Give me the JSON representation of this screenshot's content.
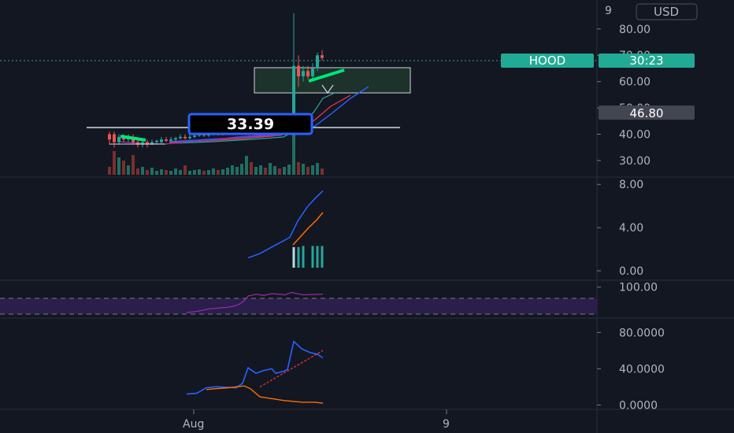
{
  "currency": "USD",
  "ticker": {
    "symbol": "HOOD",
    "countdown": "30:23",
    "color": "#22ab94"
  },
  "price_tag": {
    "value": "46.80",
    "color": "#434651"
  },
  "callout_label": "33.39",
  "x_axis": {
    "labels": [
      "Aug",
      "9"
    ]
  },
  "chart_data": [
    {
      "type": "candlestick",
      "pane": "price",
      "y_ticks": [
        30,
        40,
        50,
        60,
        70,
        80
      ],
      "y_tick_labels": [
        "30.00",
        "40.00",
        "50.00",
        "60.00",
        "70.00",
        "80.00"
      ],
      "extra_top_label": "9",
      "ylim": [
        24,
        91
      ],
      "current_price": 70.2,
      "last_price_line": 46.8,
      "horizontal_level": 40.0,
      "grid": false,
      "colors": {
        "up": "#26a69a",
        "down": "#ef5350"
      }
    },
    {
      "type": "line",
      "pane": "macd",
      "y_ticks": [
        0,
        4,
        8
      ],
      "y_tick_labels": [
        "0.00",
        "4.00",
        "8.00"
      ],
      "ylim": [
        -0.8,
        8.6
      ],
      "series": [
        {
          "color": "#2962ff",
          "values": [
            1.2,
            1.6,
            2.2,
            2.7,
            3.1,
            4.6,
            5.9,
            6.7,
            7.4
          ]
        },
        {
          "color": "#ff6d00",
          "values": [
            2.4,
            3.2,
            4.0,
            4.7,
            5.4
          ]
        }
      ],
      "histogram": [
        2.2,
        2.2,
        2.3,
        2.3,
        2.3,
        2.3
      ]
    },
    {
      "type": "line",
      "pane": "rsi",
      "y_ticks": [
        100
      ],
      "y_tick_labels": [
        "100.00"
      ],
      "band": [
        30,
        70
      ],
      "ylim": [
        0,
        120
      ],
      "series": [
        {
          "color": "#9c27b0",
          "values": [
            52,
            54,
            58,
            60,
            61,
            64,
            67,
            72,
            80,
            83,
            81,
            84,
            83,
            82,
            86,
            82,
            83
          ]
        }
      ]
    },
    {
      "type": "line",
      "pane": "dmi",
      "y_ticks": [
        0,
        40,
        80
      ],
      "y_tick_labels": [
        "0.0000",
        "40.0000",
        "80.0000"
      ],
      "ylim": [
        -4,
        95
      ],
      "series": [
        {
          "color": "#2962ff",
          "values": [
            12,
            13,
            19,
            20,
            19,
            24,
            41,
            35,
            38,
            40,
            35,
            37,
            39,
            70,
            62,
            58,
            56,
            52
          ]
        },
        {
          "color": "#ff6d00",
          "values": [
            17,
            18,
            19,
            20,
            21,
            18,
            9,
            7,
            5,
            4,
            3,
            3,
            2
          ]
        },
        {
          "color": "#f23645",
          "values": [
            20,
            25,
            30,
            35,
            40,
            45,
            50,
            55,
            60
          ]
        }
      ]
    }
  ]
}
